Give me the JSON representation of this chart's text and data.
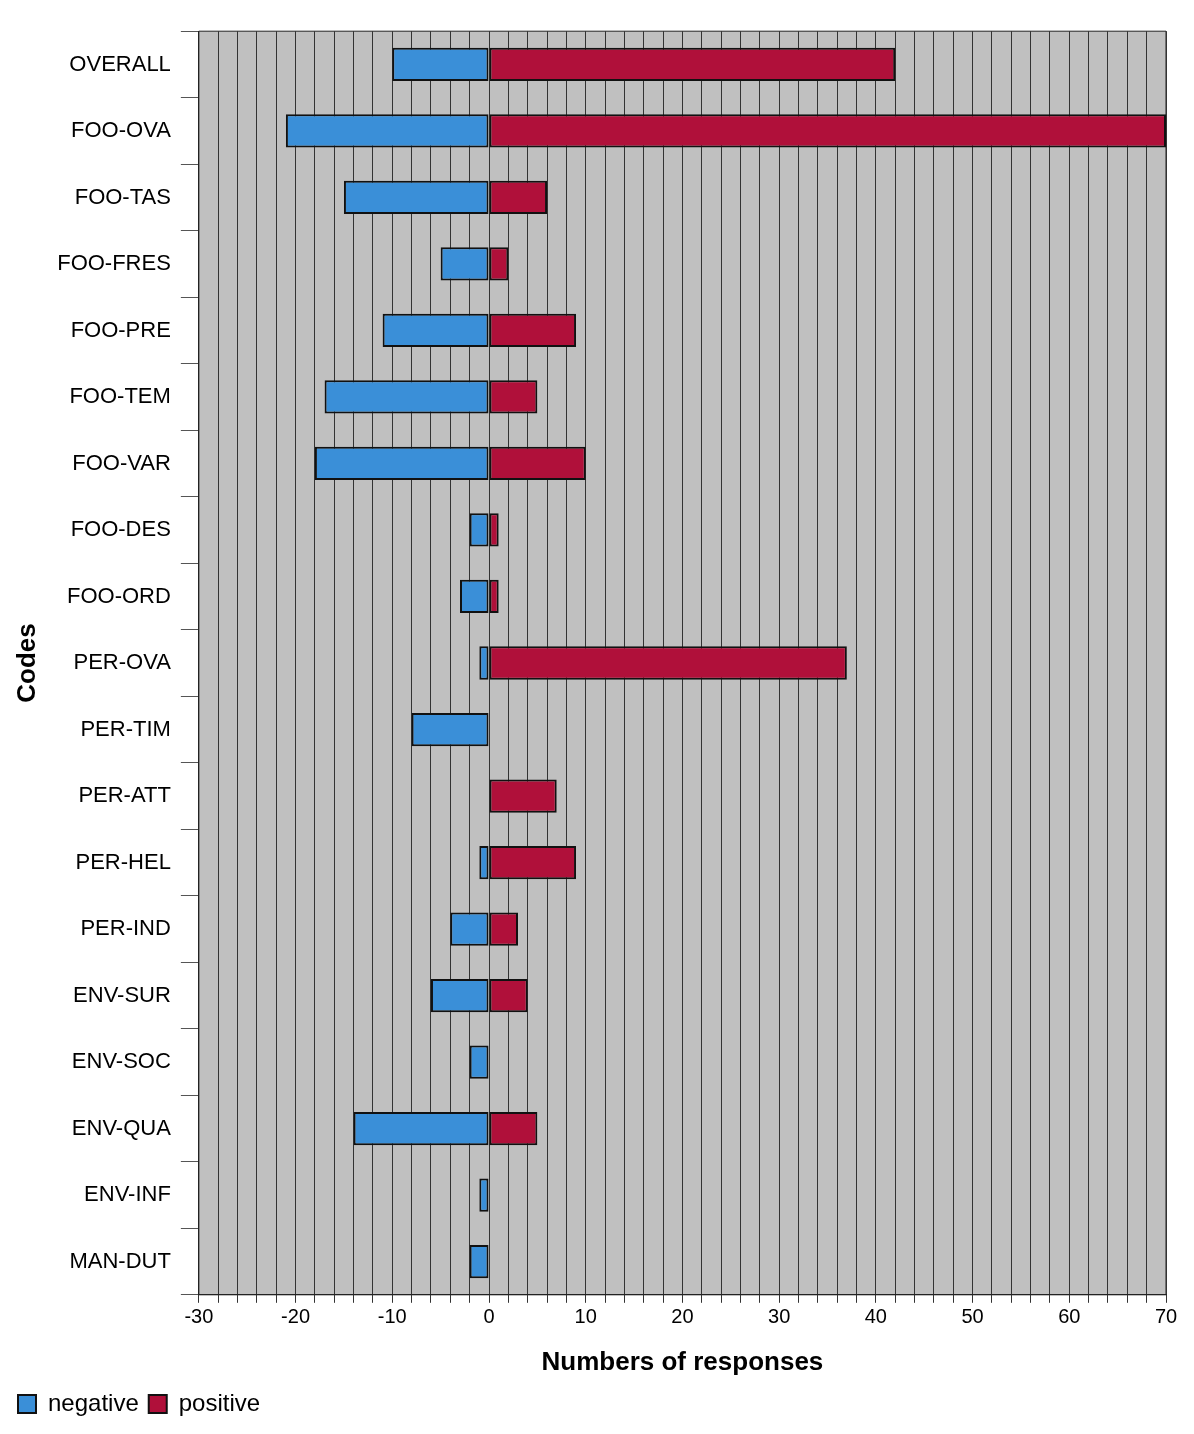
{
  "chart_data": {
    "type": "bar",
    "orientation": "horizontal",
    "stacked": true,
    "xlabel": "Numbers of responses",
    "ylabel": "Codes",
    "categories": [
      "OVERALL",
      "FOO-OVA",
      "FOO-TAS",
      "FOO-FRES",
      "FOO-PRE",
      "FOO-TEM",
      "FOO-VAR",
      "FOO-DES",
      "FOO-ORD",
      "PER-OVA",
      "PER-TIM",
      "PER-ATT",
      "PER-HEL",
      "PER-IND",
      "ENV-SUR",
      "ENV-SOC",
      "ENV-QUA",
      "ENV-INF",
      "MAN-DUT"
    ],
    "series": [
      {
        "name": "negative",
        "color": "#3a8fd8",
        "values": [
          -10,
          -21,
          -15,
          -5,
          -11,
          -17,
          -18,
          -2,
          -3,
          -1,
          -8,
          0,
          -1,
          -4,
          -6,
          -2,
          -14,
          -1,
          -2
        ]
      },
      {
        "name": "positive",
        "color": "#b0103a",
        "values": [
          42,
          70,
          6,
          2,
          9,
          5,
          10,
          1,
          1,
          37,
          0,
          7,
          9,
          3,
          4,
          0,
          5,
          0,
          0
        ]
      }
    ],
    "xlim": [
      -30,
      70
    ],
    "xticks": [
      -30,
      {
        "value": -28,
        "label": null
      },
      {
        "value": -26,
        "label": null
      },
      {
        "value": -24,
        "label": null
      },
      {
        "value": -22,
        "label": null
      },
      -20,
      {
        "value": -18,
        "label": null
      },
      {
        "value": -16,
        "label": null
      },
      {
        "value": -14,
        "label": null
      },
      {
        "value": -12,
        "label": null
      },
      -10,
      {
        "value": -8,
        "label": null
      },
      {
        "value": -6,
        "label": null
      },
      {
        "value": -4,
        "label": null
      },
      {
        "value": -2,
        "label": null
      },
      0,
      {
        "value": 2,
        "label": null
      },
      {
        "value": 4,
        "label": null
      },
      {
        "value": 6,
        "label": null
      },
      {
        "value": 8,
        "label": null
      },
      10,
      {
        "value": 12,
        "label": null
      },
      {
        "value": 14,
        "label": null
      },
      {
        "value": 16,
        "label": null
      },
      {
        "value": 18,
        "label": null
      },
      20,
      {
        "value": 22,
        "label": null
      },
      {
        "value": 24,
        "label": null
      },
      {
        "value": 26,
        "label": null
      },
      {
        "value": 28,
        "label": null
      },
      30,
      {
        "value": 32,
        "label": null
      },
      {
        "value": 34,
        "label": null
      },
      {
        "value": 36,
        "label": null
      },
      {
        "value": 38,
        "label": null
      },
      40,
      {
        "value": 42,
        "label": null
      },
      {
        "value": 44,
        "label": null
      },
      {
        "value": 46,
        "label": null
      },
      {
        "value": 48,
        "label": null
      },
      50,
      {
        "value": 52,
        "label": null
      },
      {
        "value": 54,
        "label": null
      },
      {
        "value": 56,
        "label": null
      },
      {
        "value": 58,
        "label": null
      },
      60,
      {
        "value": 62,
        "label": null
      },
      {
        "value": 64,
        "label": null
      },
      {
        "value": 66,
        "label": null
      },
      {
        "value": 68,
        "label": null
      },
      70
    ],
    "grid": "x",
    "legend": "bottom left"
  }
}
